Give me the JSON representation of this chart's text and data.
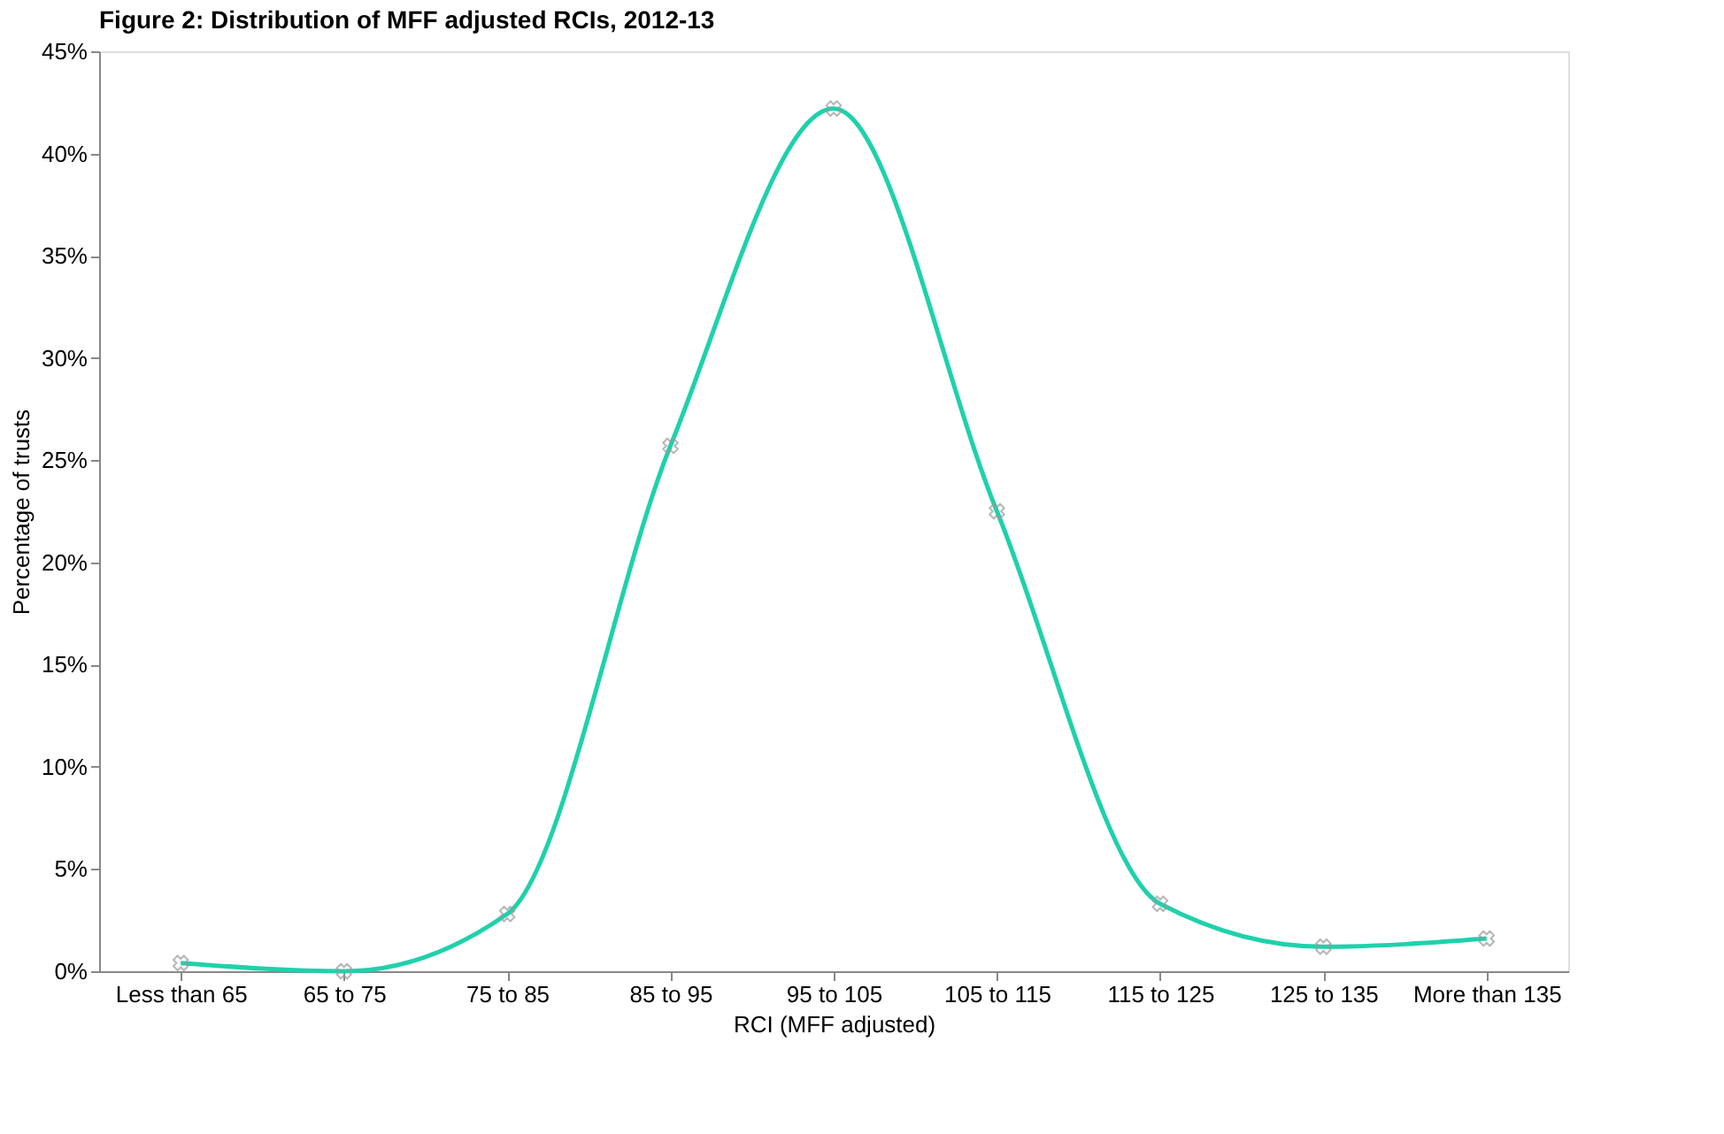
{
  "chart_data": {
    "type": "line",
    "title": "Figure 2: Distribution of MFF adjusted RCIs, 2012-13",
    "xlabel": "RCI (MFF adjusted)",
    "ylabel": "Percentage of trusts",
    "categories": [
      "Less than 65",
      "65 to 75",
      "75 to 85",
      "85 to 95",
      "95 to 105",
      "105 to 115",
      "115 to 125",
      "125 to 135",
      "More than 135"
    ],
    "series": [
      {
        "color": "#1fd1ab",
        "values": [
          0.4,
          0.0,
          2.8,
          25.7,
          42.2,
          22.5,
          3.3,
          1.2,
          1.6
        ]
      }
    ],
    "ylim": [
      0,
      45
    ],
    "yticks": [
      {
        "value": 0,
        "label": "0%"
      },
      {
        "value": 5,
        "label": "5%"
      },
      {
        "value": 10,
        "label": "10%"
      },
      {
        "value": 15,
        "label": "15%"
      },
      {
        "value": 20,
        "label": "20%"
      },
      {
        "value": 25,
        "label": "25%"
      },
      {
        "value": 30,
        "label": "30%"
      },
      {
        "value": 35,
        "label": "35%"
      },
      {
        "value": 40,
        "label": "40%"
      },
      {
        "value": 45,
        "label": "45%"
      }
    ],
    "marker": "cross",
    "line_style": "solid",
    "grid": false
  }
}
